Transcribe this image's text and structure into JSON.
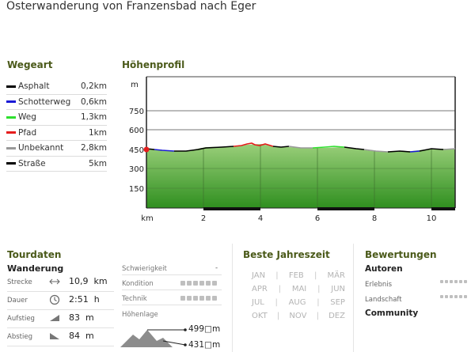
{
  "page": {
    "title": "Osterwanderung von Franzensbad nach Eger"
  },
  "wegeart": {
    "title": "Wegeart",
    "items": [
      {
        "name": "Asphalt",
        "value": "0,2km",
        "color": "#000000"
      },
      {
        "name": "Schotterweg",
        "value": "0,6km",
        "color": "#1a1ad6"
      },
      {
        "name": "Weg",
        "value": "1,3km",
        "color": "#2ee02e"
      },
      {
        "name": "Pfad",
        "value": "1km",
        "color": "#e51c1c"
      },
      {
        "name": "Unbekannt",
        "value": "2,8km",
        "color": "#999999"
      },
      {
        "name": "Straße",
        "value": "5km",
        "color": "#000000"
      }
    ]
  },
  "hoehenprofil": {
    "title": "Höhenprofil",
    "y_unit": "m",
    "y_ticks": [
      "750",
      "600",
      "450",
      "300",
      "150"
    ],
    "x_unit": "km",
    "x_ticks": [
      "2",
      "4",
      "6",
      "8",
      "10"
    ],
    "fill_top": "#9acf7a",
    "fill_bottom": "#2f8f1f",
    "marker_color": "#e51c1c"
  },
  "tourdaten": {
    "title": "Tourdaten",
    "subtitle": "Wanderung",
    "rows": [
      {
        "label": "Strecke",
        "icon": "distance-icon",
        "value": "10,9",
        "unit": "km"
      },
      {
        "label": "Dauer",
        "icon": "clock-icon",
        "value": "2:51",
        "unit": "h"
      },
      {
        "label": "Aufstieg",
        "icon": "ascent-icon",
        "value": "83",
        "unit": "m"
      },
      {
        "label": "Abstieg",
        "icon": "descent-icon",
        "value": "84",
        "unit": "m"
      }
    ],
    "schwierigkeit": {
      "label": "Schwierigkeit",
      "value": "-"
    },
    "kondition": {
      "label": "Kondition"
    },
    "technik": {
      "label": "Technik"
    },
    "hoehenlage": {
      "label": "Höhenlage",
      "max": "499□m",
      "min": "431□m"
    }
  },
  "jahreszeit": {
    "title": "Beste Jahreszeit",
    "months": [
      [
        "JAN",
        "FEB",
        "MÄR"
      ],
      [
        "APR",
        "MAI",
        "JUN"
      ],
      [
        "JUL",
        "AUG",
        "SEP"
      ],
      [
        "OKT",
        "NOV",
        "DEZ"
      ]
    ],
    "separator": "|"
  },
  "bewertungen": {
    "title": "Bewertungen",
    "autoren": "Autoren",
    "erlebnis": "Erlebnis",
    "landschaft": "Landschaft",
    "community": "Community"
  }
}
